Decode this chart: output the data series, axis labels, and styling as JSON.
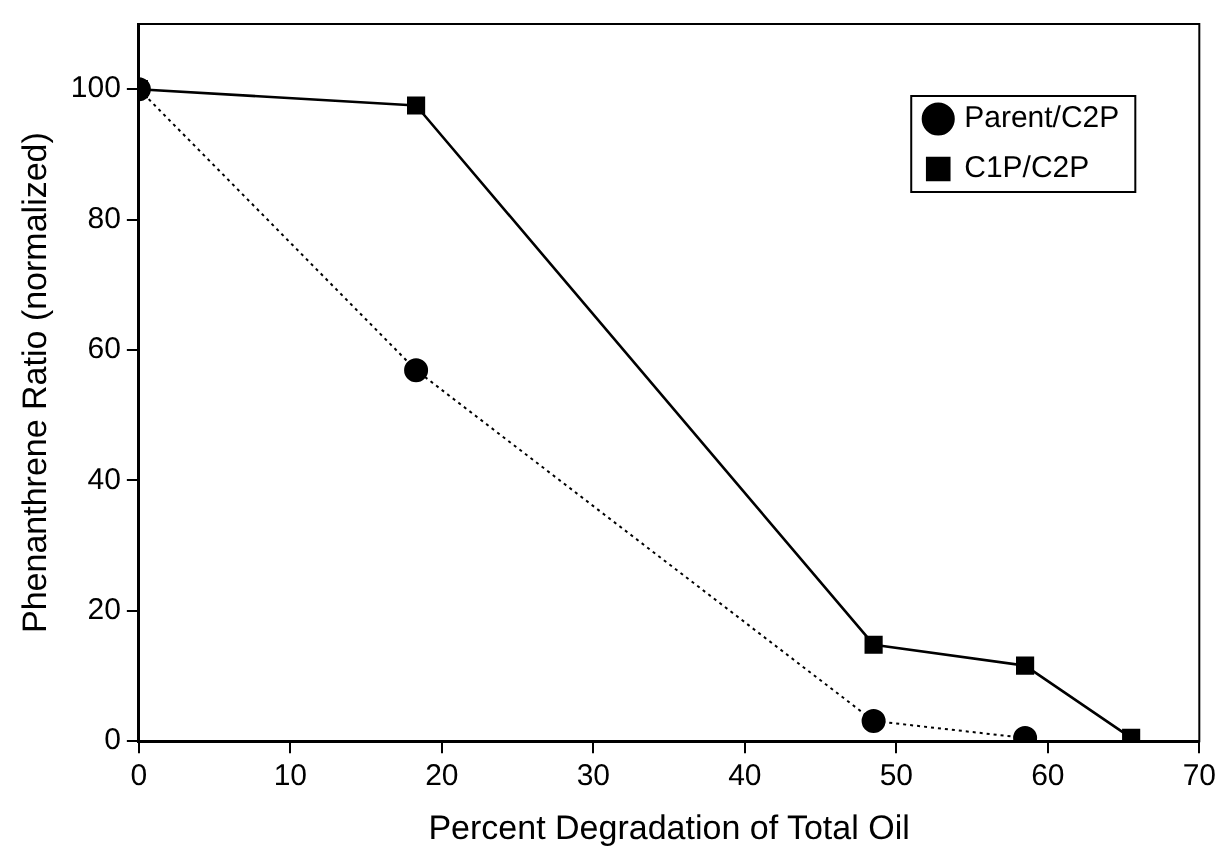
{
  "chart_data": {
    "type": "line",
    "xlabel": "Percent Degradation of Total Oil",
    "ylabel": "Phenanthrene Ratio (normalized)",
    "x": [
      0,
      18.3,
      48.5,
      58.5,
      65.5
    ],
    "series": [
      {
        "name": "Parent/C2P",
        "color": "#000000",
        "values": [
          100,
          56.9,
          3.1,
          0.5,
          null
        ],
        "marker": "circle",
        "line_style": "dotted"
      },
      {
        "name": "C1P/C2P",
        "color": "#000000",
        "values": [
          100,
          97.5,
          14.8,
          11.6,
          0.5
        ],
        "marker": "square",
        "line_style": "solid"
      }
    ],
    "xlim": [
      0,
      70
    ],
    "xticks": [
      0,
      10,
      20,
      30,
      40,
      50,
      60,
      70
    ],
    "ylim": [
      0,
      110
    ],
    "yticks": [
      0,
      20,
      40,
      60,
      80,
      100
    ],
    "grid": false,
    "legend": "top right"
  }
}
